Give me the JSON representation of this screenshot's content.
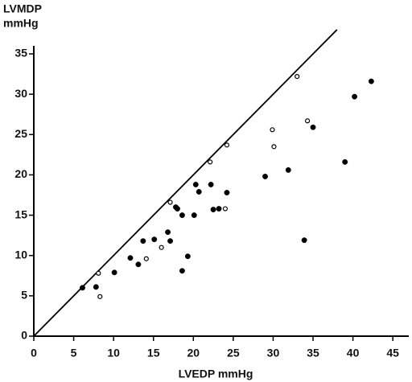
{
  "chart_data": {
    "type": "scatter",
    "ylabel": [
      "LVMDP",
      "mmHg"
    ],
    "xlabel": "LVEDP mmHg",
    "xlim": [
      0,
      47
    ],
    "ylim": [
      0,
      36
    ],
    "xticks": [
      0,
      5,
      10,
      15,
      20,
      25,
      30,
      35,
      40,
      45
    ],
    "yticks": [
      0,
      5,
      10,
      15,
      20,
      25,
      30,
      35
    ],
    "identity_line": true,
    "series": [
      {
        "marker": "filled",
        "color": "#000000",
        "x": [
          6.1,
          7.8,
          10.1,
          12.1,
          13.1,
          13.7,
          15.1,
          16.8,
          17.1,
          17.8,
          18.0,
          18.6,
          18.6,
          19.3,
          20.1,
          20.3,
          20.7,
          22.2,
          22.5,
          23.2,
          24.2,
          29.0,
          31.9,
          33.9,
          35.0,
          39.0,
          40.2,
          42.3
        ],
        "values": [
          6.0,
          6.1,
          7.9,
          9.7,
          8.9,
          11.8,
          12.0,
          12.9,
          11.8,
          16.0,
          15.8,
          15.0,
          8.1,
          9.9,
          15.0,
          18.8,
          17.9,
          18.8,
          15.7,
          15.8,
          17.8,
          19.8,
          20.6,
          11.9,
          25.9,
          21.6,
          29.7,
          31.6
        ]
      },
      {
        "marker": "open",
        "color": "#000000",
        "x": [
          8.1,
          8.3,
          14.1,
          16.0,
          17.1,
          22.1,
          24.2,
          24.0,
          29.9,
          30.1,
          33.0,
          34.3
        ],
        "values": [
          7.8,
          4.9,
          9.6,
          11.0,
          16.6,
          21.6,
          23.7,
          15.8,
          25.6,
          23.5,
          32.2,
          26.7
        ]
      }
    ]
  }
}
